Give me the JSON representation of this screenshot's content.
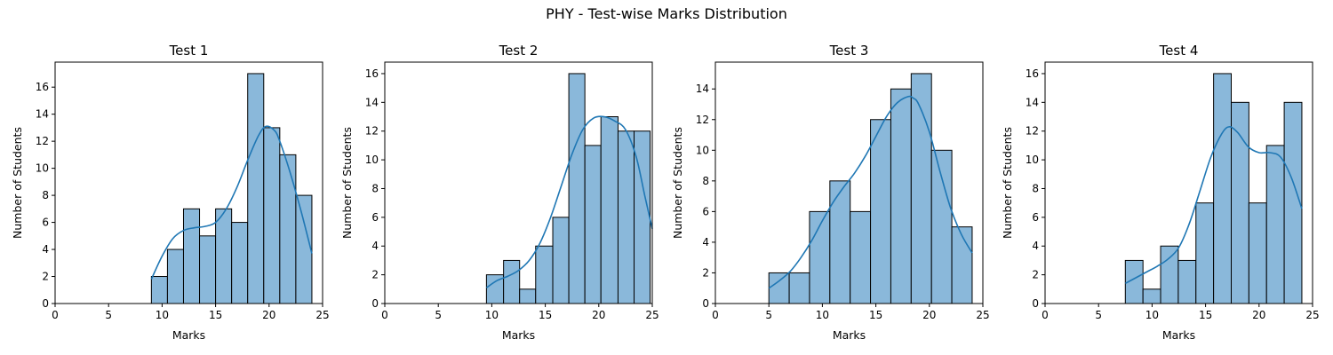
{
  "figure": {
    "title": "PHY - Test-wise Marks Distribution"
  },
  "chart_data": [
    {
      "type": "bar",
      "title": "Test 1",
      "xlabel": "Marks",
      "ylabel": "Number of Students",
      "xlim": [
        0,
        25
      ],
      "ylim": [
        0,
        17.85
      ],
      "xticks": [
        0,
        5,
        10,
        15,
        20,
        25
      ],
      "yticks": [
        0,
        2,
        4,
        6,
        8,
        10,
        12,
        14,
        16
      ],
      "bin_edges": [
        9,
        10.5,
        12,
        13.5,
        15,
        16.5,
        18,
        19.5,
        21,
        22.5,
        24
      ],
      "values": [
        2,
        4,
        7,
        5,
        7,
        6,
        17,
        13,
        11,
        8
      ],
      "kde": {
        "x": [
          9,
          10,
          11,
          12,
          13,
          14,
          15,
          16,
          17,
          18,
          19,
          19.7,
          20.5,
          21,
          22,
          23,
          24
        ],
        "y": [
          1.8,
          3.5,
          4.8,
          5.4,
          5.6,
          5.7,
          6.0,
          7.0,
          8.6,
          10.6,
          12.4,
          13.1,
          12.8,
          12.0,
          9.6,
          6.8,
          3.7
        ]
      }
    },
    {
      "type": "bar",
      "title": "Test 2",
      "xlabel": "Marks",
      "ylabel": "Number of Students",
      "xlim": [
        0,
        25
      ],
      "ylim": [
        0,
        16.8
      ],
      "xticks": [
        0,
        5,
        10,
        15,
        20,
        25
      ],
      "yticks": [
        0,
        2,
        4,
        6,
        8,
        10,
        12,
        14,
        16
      ],
      "bin_edges": [
        9.5,
        11.1,
        12.6,
        14.1,
        15.7,
        17.2,
        18.7,
        20.2,
        21.8,
        23.3,
        24.8
      ],
      "values": [
        2,
        3,
        1,
        4,
        6,
        16,
        11,
        13,
        12,
        12
      ],
      "kde": {
        "x": [
          9.5,
          10.5,
          11.5,
          12.5,
          13.5,
          14.5,
          15.5,
          16.5,
          17.5,
          18.5,
          19.5,
          20.5,
          21.5,
          22.5,
          23.5,
          24.3,
          25
        ],
        "y": [
          1.1,
          1.6,
          1.9,
          2.3,
          3.0,
          4.2,
          6.0,
          8.2,
          10.4,
          12.1,
          12.9,
          13.0,
          12.7,
          12.1,
          10.2,
          7.5,
          5.2
        ]
      }
    },
    {
      "type": "bar",
      "title": "Test 3",
      "xlabel": "Marks",
      "ylabel": "Number of Students",
      "xlim": [
        0,
        25
      ],
      "ylim": [
        0,
        15.75
      ],
      "xticks": [
        0,
        5,
        10,
        15,
        20,
        25
      ],
      "yticks": [
        0,
        2,
        4,
        6,
        8,
        10,
        12,
        14
      ],
      "bin_edges": [
        5,
        6.9,
        8.8,
        10.7,
        12.6,
        14.5,
        16.4,
        18.3,
        20.2,
        22.1,
        24
      ],
      "values": [
        2,
        2,
        6,
        8,
        6,
        12,
        14,
        15,
        10,
        5
      ],
      "kde": {
        "x": [
          5,
          6,
          7,
          8,
          9,
          10,
          11,
          12,
          13,
          14,
          15,
          16,
          17,
          18,
          18.5,
          19,
          20,
          21,
          22,
          23,
          24
        ],
        "y": [
          1.0,
          1.5,
          2.1,
          3.0,
          4.1,
          5.4,
          6.6,
          7.6,
          8.5,
          9.6,
          10.9,
          12.2,
          13.1,
          13.5,
          13.4,
          13.0,
          11.2,
          8.6,
          6.2,
          4.5,
          3.3
        ]
      }
    },
    {
      "type": "bar",
      "title": "Test 4",
      "xlabel": "Marks",
      "ylabel": "Number of Students",
      "xlim": [
        0,
        25
      ],
      "ylim": [
        0,
        16.8
      ],
      "xticks": [
        0,
        5,
        10,
        15,
        20,
        25
      ],
      "yticks": [
        0,
        2,
        4,
        6,
        8,
        10,
        12,
        14,
        16
      ],
      "bin_edges": [
        7.5,
        9.15,
        10.8,
        12.45,
        14.1,
        15.75,
        17.4,
        19.05,
        20.7,
        22.35,
        24
      ],
      "values": [
        3,
        1,
        4,
        3,
        7,
        16,
        14,
        7,
        11,
        14
      ],
      "kde": {
        "x": [
          7.5,
          8.5,
          9.5,
          10.5,
          11.5,
          12.5,
          13.5,
          14.5,
          15.5,
          16.5,
          17.2,
          18,
          19,
          20,
          21,
          22,
          23,
          24
        ],
        "y": [
          1.4,
          1.8,
          2.2,
          2.6,
          3.1,
          3.9,
          5.6,
          7.9,
          10.2,
          11.8,
          12.3,
          11.9,
          10.9,
          10.5,
          10.5,
          10.2,
          8.8,
          6.6
        ]
      }
    }
  ]
}
